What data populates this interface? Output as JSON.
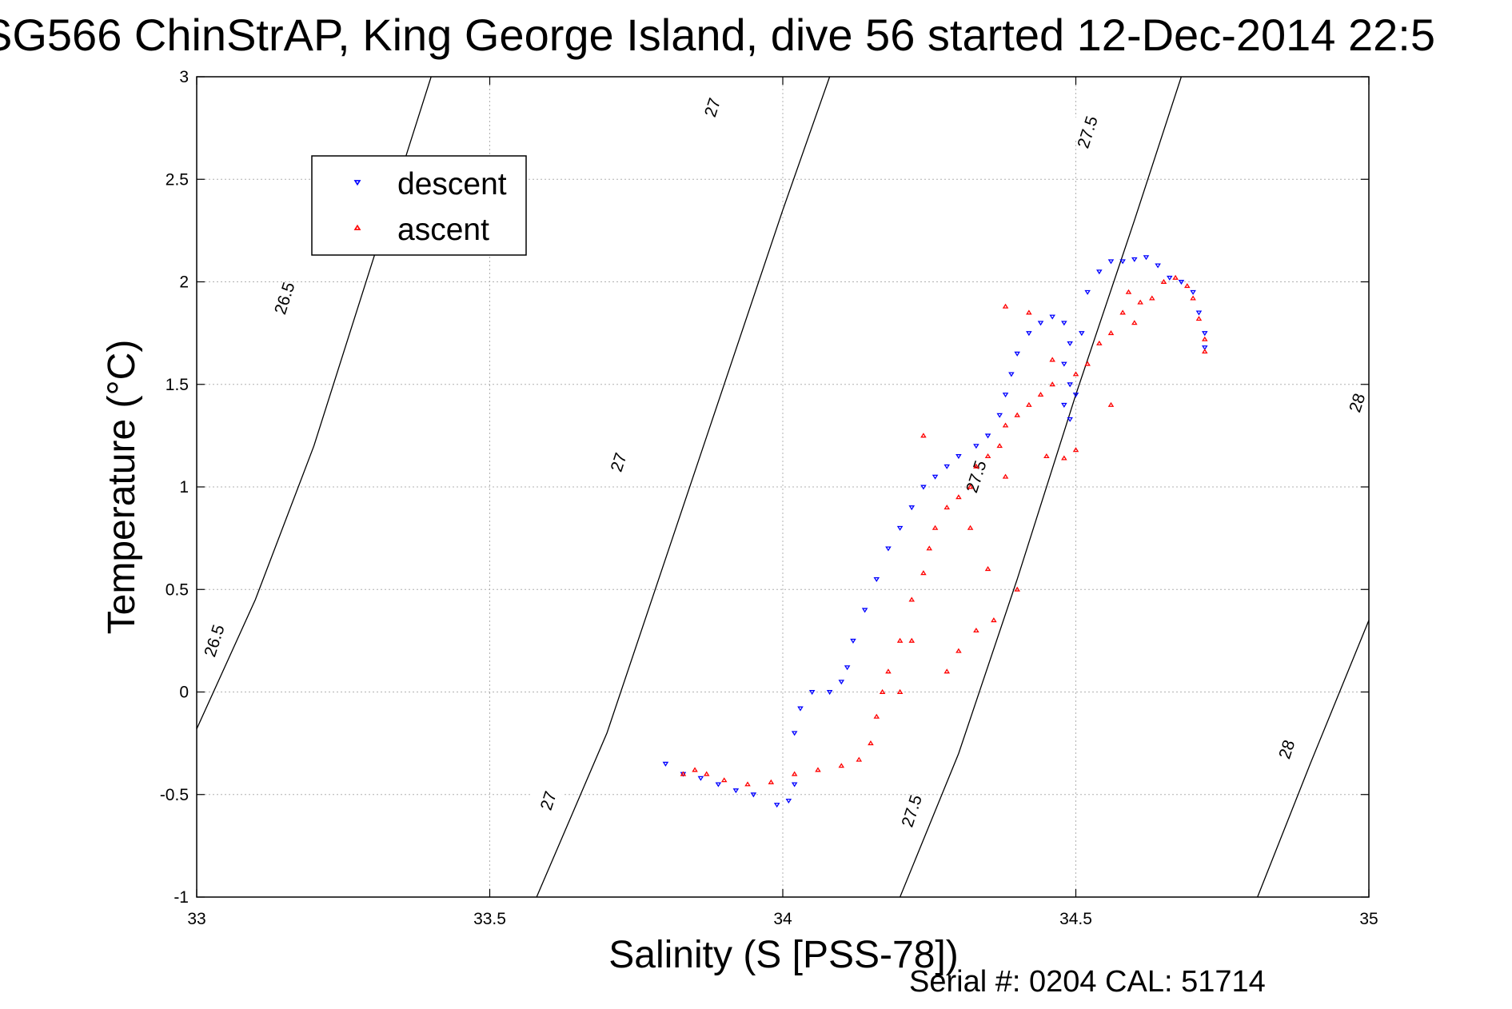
{
  "chart_data": {
    "type": "scatter",
    "title": "SG566 ChinStrAP, King George Island, dive 56 started 12-Dec-2014 22:5",
    "xlabel": "Salinity (S [PSS-78])",
    "ylabel": "Temperature (°C)",
    "xlim": [
      33,
      35
    ],
    "ylim": [
      -1,
      3
    ],
    "xticks": [
      {
        "value": 33,
        "label": "33"
      },
      {
        "value": 33.5,
        "label": "33.5"
      },
      {
        "value": 34,
        "label": "34"
      },
      {
        "value": 34.5,
        "label": "34.5"
      },
      {
        "value": 35,
        "label": "35"
      }
    ],
    "yticks": [
      {
        "value": -1,
        "label": "-1"
      },
      {
        "value": -0.5,
        "label": "-0.5"
      },
      {
        "value": 0,
        "label": "0"
      },
      {
        "value": 0.5,
        "label": "0.5"
      },
      {
        "value": 1,
        "label": "1"
      },
      {
        "value": 1.5,
        "label": "1.5"
      },
      {
        "value": 2,
        "label": "2"
      },
      {
        "value": 2.5,
        "label": "2.5"
      },
      {
        "value": 3,
        "label": "3"
      }
    ],
    "grid": true,
    "legend": {
      "placement": "upper-left"
    },
    "colors": {
      "descent": "#0000ff",
      "ascent": "#ff0000",
      "contour": "#000000",
      "grid": "#b0b0b0"
    },
    "contours": [
      {
        "label": "26.5",
        "points": [
          [
            33.0,
            -0.18
          ],
          [
            33.1,
            0.45
          ],
          [
            33.2,
            1.2
          ],
          [
            33.3,
            2.1
          ],
          [
            33.4,
            3.0
          ]
        ],
        "labels_at": [
          {
            "label": "26.5",
            "x": 33.03,
            "y": 0.25
          },
          {
            "label": "26.5",
            "x": 33.15,
            "y": 1.92
          }
        ]
      },
      {
        "label": "27",
        "points": [
          [
            33.58,
            -1.0
          ],
          [
            33.7,
            -0.2
          ],
          [
            33.8,
            0.65
          ],
          [
            33.9,
            1.5
          ],
          [
            34.0,
            2.35
          ],
          [
            34.08,
            3.0
          ]
        ],
        "labels_at": [
          {
            "label": "27",
            "x": 33.6,
            "y": -0.53
          },
          {
            "label": "27",
            "x": 33.72,
            "y": 1.12
          },
          {
            "label": "27",
            "x": 33.88,
            "y": 2.85
          }
        ]
      },
      {
        "label": "27.5",
        "points": [
          [
            34.2,
            -1.0
          ],
          [
            34.3,
            -0.3
          ],
          [
            34.4,
            0.55
          ],
          [
            34.5,
            1.45
          ],
          [
            34.6,
            2.3
          ],
          [
            34.68,
            3.0
          ]
        ],
        "labels_at": [
          {
            "label": "27.5",
            "x": 34.22,
            "y": -0.58
          },
          {
            "label": "27.5",
            "x": 34.33,
            "y": 1.05
          },
          {
            "label": "27.5",
            "x": 34.52,
            "y": 2.73
          }
        ]
      },
      {
        "label": "28",
        "points": [
          [
            34.81,
            -1.0
          ],
          [
            34.9,
            -0.35
          ],
          [
            35.0,
            0.35
          ]
        ],
        "labels_at": [
          {
            "label": "28",
            "x": 34.86,
            "y": -0.28
          },
          {
            "label": "28",
            "x": 34.98,
            "y": 1.41
          }
        ]
      }
    ],
    "series": [
      {
        "name": "descent",
        "marker": "triangle-down",
        "points": [
          [
            33.8,
            -0.35
          ],
          [
            33.83,
            -0.4
          ],
          [
            33.86,
            -0.42
          ],
          [
            33.89,
            -0.45
          ],
          [
            33.92,
            -0.48
          ],
          [
            33.95,
            -0.5
          ],
          [
            33.99,
            -0.55
          ],
          [
            34.01,
            -0.53
          ],
          [
            34.02,
            -0.45
          ],
          [
            34.02,
            -0.2
          ],
          [
            34.03,
            -0.08
          ],
          [
            34.05,
            0.0
          ],
          [
            34.08,
            0.0
          ],
          [
            34.1,
            0.05
          ],
          [
            34.11,
            0.12
          ],
          [
            34.12,
            0.25
          ],
          [
            34.14,
            0.4
          ],
          [
            34.16,
            0.55
          ],
          [
            34.18,
            0.7
          ],
          [
            34.2,
            0.8
          ],
          [
            34.22,
            0.9
          ],
          [
            34.24,
            1.0
          ],
          [
            34.26,
            1.05
          ],
          [
            34.28,
            1.1
          ],
          [
            34.3,
            1.15
          ],
          [
            34.33,
            1.2
          ],
          [
            34.35,
            1.25
          ],
          [
            34.37,
            1.35
          ],
          [
            34.38,
            1.45
          ],
          [
            34.39,
            1.55
          ],
          [
            34.4,
            1.65
          ],
          [
            34.42,
            1.75
          ],
          [
            34.44,
            1.8
          ],
          [
            34.46,
            1.83
          ],
          [
            34.48,
            1.8
          ],
          [
            34.49,
            1.7
          ],
          [
            34.48,
            1.6
          ],
          [
            34.49,
            1.5
          ],
          [
            34.48,
            1.4
          ],
          [
            34.49,
            1.33
          ],
          [
            34.5,
            1.45
          ],
          [
            34.51,
            1.75
          ],
          [
            34.52,
            1.95
          ],
          [
            34.54,
            2.05
          ],
          [
            34.56,
            2.1
          ],
          [
            34.58,
            2.1
          ],
          [
            34.6,
            2.11
          ],
          [
            34.62,
            2.12
          ],
          [
            34.64,
            2.08
          ],
          [
            34.66,
            2.02
          ],
          [
            34.68,
            2.0
          ],
          [
            34.7,
            1.95
          ],
          [
            34.71,
            1.85
          ],
          [
            34.72,
            1.75
          ],
          [
            34.72,
            1.68
          ]
        ]
      },
      {
        "name": "ascent",
        "marker": "triangle-up",
        "points": [
          [
            33.83,
            -0.4
          ],
          [
            33.85,
            -0.38
          ],
          [
            33.87,
            -0.4
          ],
          [
            33.9,
            -0.43
          ],
          [
            33.94,
            -0.45
          ],
          [
            33.98,
            -0.44
          ],
          [
            34.02,
            -0.4
          ],
          [
            34.06,
            -0.38
          ],
          [
            34.1,
            -0.36
          ],
          [
            34.13,
            -0.33
          ],
          [
            34.15,
            -0.25
          ],
          [
            34.16,
            -0.12
          ],
          [
            34.17,
            0.0
          ],
          [
            34.18,
            0.1
          ],
          [
            34.2,
            0.25
          ],
          [
            34.22,
            0.45
          ],
          [
            34.24,
            0.58
          ],
          [
            34.25,
            0.7
          ],
          [
            34.26,
            0.8
          ],
          [
            34.28,
            0.9
          ],
          [
            34.3,
            0.95
          ],
          [
            34.32,
            1.0
          ],
          [
            34.33,
            1.1
          ],
          [
            34.35,
            1.15
          ],
          [
            34.37,
            1.2
          ],
          [
            34.38,
            1.3
          ],
          [
            34.4,
            1.35
          ],
          [
            34.42,
            1.4
          ],
          [
            34.44,
            1.45
          ],
          [
            34.46,
            1.5
          ],
          [
            34.5,
            1.55
          ],
          [
            34.52,
            1.6
          ],
          [
            34.54,
            1.7
          ],
          [
            34.56,
            1.75
          ],
          [
            34.58,
            1.85
          ],
          [
            34.59,
            1.95
          ],
          [
            34.61,
            1.9
          ],
          [
            34.63,
            1.92
          ],
          [
            34.65,
            2.0
          ],
          [
            34.67,
            2.02
          ],
          [
            34.69,
            1.98
          ],
          [
            34.7,
            1.92
          ],
          [
            34.71,
            1.82
          ],
          [
            34.72,
            1.72
          ],
          [
            34.72,
            1.66
          ],
          [
            34.45,
            1.15
          ],
          [
            34.48,
            1.14
          ],
          [
            34.5,
            1.18
          ],
          [
            34.38,
            1.88
          ],
          [
            34.42,
            1.85
          ],
          [
            34.46,
            1.62
          ],
          [
            34.4,
            0.5
          ],
          [
            34.36,
            0.35
          ],
          [
            34.33,
            0.3
          ],
          [
            34.3,
            0.2
          ],
          [
            34.28,
            0.1
          ],
          [
            34.22,
            0.25
          ],
          [
            34.2,
            0.0
          ],
          [
            34.24,
            1.25
          ],
          [
            34.32,
            0.8
          ],
          [
            34.35,
            0.6
          ],
          [
            34.38,
            1.05
          ],
          [
            34.56,
            1.4
          ],
          [
            34.6,
            1.8
          ]
        ]
      }
    ],
    "footer": "Serial #: 0204  CAL: 51714"
  }
}
